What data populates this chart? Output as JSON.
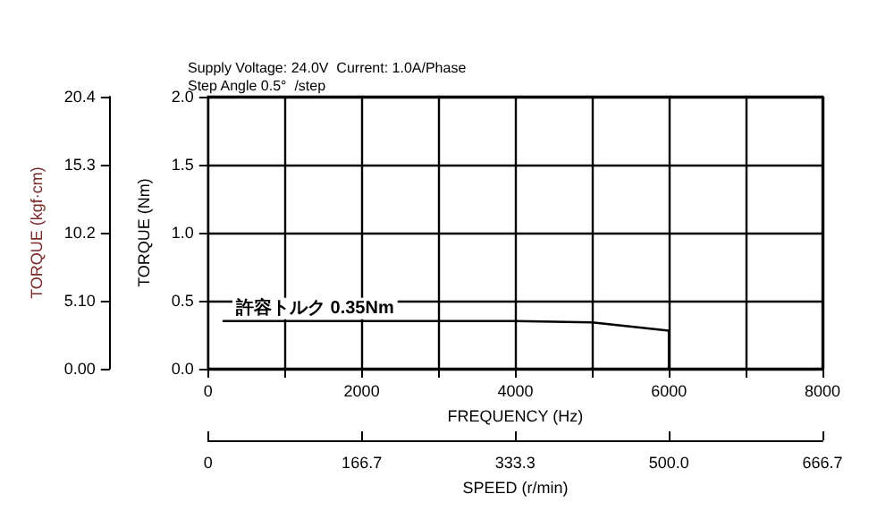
{
  "chart_data": {
    "type": "line",
    "subtitle": "Supply Voltage: 24.0V  Current: 1.0A/Phase\nStep Angle 0.5°  /step",
    "xlabel": "FREQUENCY (Hz)",
    "ylabel": "TORQUE (Nm)",
    "y2label": "TORQUE (kgf·cm)",
    "x2label": "SPEED (r/min)",
    "series": [
      {
        "color": "#000000",
        "x": [
          200,
          1000,
          2000,
          3000,
          4000,
          5000,
          6000,
          6000
        ],
        "values": [
          0.35,
          0.35,
          0.35,
          0.35,
          0.35,
          0.34,
          0.28,
          0
        ]
      }
    ],
    "annotations": [
      {
        "text": "許容トルク 0.35Nm",
        "x": 200,
        "y": 0.35
      }
    ],
    "xlim": [
      0,
      8000
    ],
    "xticks": [
      0,
      {
        "value": 1000,
        "label": null
      },
      2000,
      {
        "value": 3000,
        "label": null
      },
      4000,
      {
        "value": 5000,
        "label": null
      },
      6000,
      {
        "value": 7000,
        "label": null
      },
      8000
    ],
    "ylim": [
      0,
      2
    ],
    "yticks": [
      {
        "value": 0,
        "label": "0.0"
      },
      {
        "value": 0.5,
        "label": "0.5"
      },
      {
        "value": 1,
        "label": "1.0"
      },
      {
        "value": 1.5,
        "label": "1.5"
      },
      {
        "value": 2,
        "label": "2.0"
      }
    ],
    "y2lim": [
      0,
      20.4
    ],
    "y2ticks": [
      {
        "value": 0,
        "label": "0.00"
      },
      {
        "value": 5.1,
        "label": "5.10"
      },
      {
        "value": 10.2,
        "label": "10.2"
      },
      {
        "value": 15.3,
        "label": "15.3"
      },
      {
        "value": 20.4,
        "label": "20.4"
      }
    ],
    "x2lim": [
      0,
      666.7
    ],
    "x2ticks": [
      0,
      166.7,
      333.3,
      {
        "value": 500,
        "label": "500.0"
      },
      666.7
    ],
    "grid": true,
    "marker": "none",
    "line_style": "solid"
  }
}
